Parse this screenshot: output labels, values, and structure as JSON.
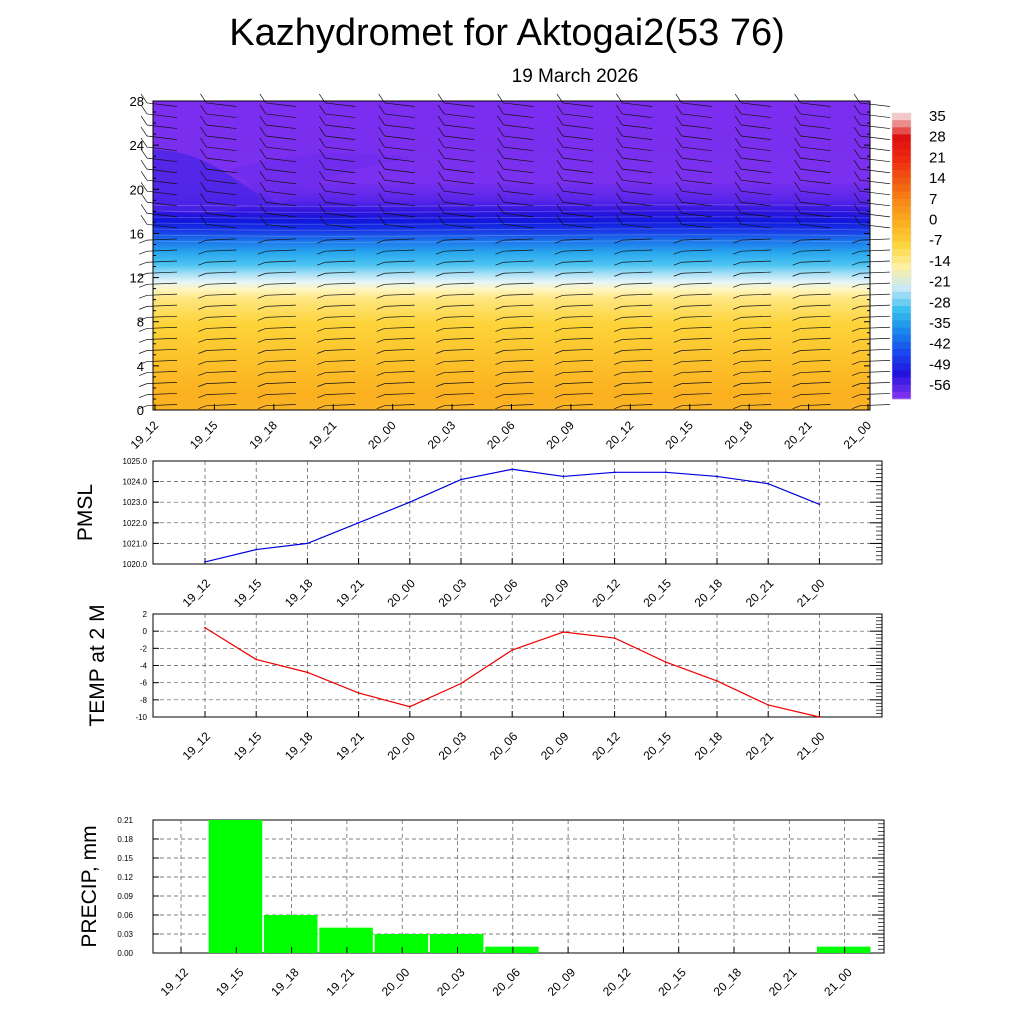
{
  "title": "Kazhydromet for Aktogai2(53 76)",
  "date": "19 March 2026",
  "x_labels": [
    "19_12",
    "19_15",
    "19_18",
    "19_21",
    "20_00",
    "20_03",
    "20_06",
    "20_09",
    "20_12",
    "20_15",
    "20_18",
    "20_21",
    "21_00"
  ],
  "colors": {
    "pmsl_line": "#0000dd",
    "temp_line": "#ee0000",
    "precip_bar": "#00ff00",
    "grid": "#555555"
  },
  "chart_data": [
    {
      "type": "heatmap",
      "name": "temperature-wind cross-section",
      "ylabel": "",
      "ylim": [
        0,
        28
      ],
      "yticks": [
        0,
        4,
        8,
        12,
        16,
        20,
        24,
        28
      ],
      "categories": [
        "19_12",
        "19_15",
        "19_18",
        "19_21",
        "20_00",
        "20_03",
        "20_06",
        "20_09",
        "20_12",
        "20_15",
        "20_18",
        "20_21",
        "21_00"
      ],
      "colorbar_labels": [
        "35",
        "28",
        "21",
        "14",
        "7",
        "0",
        "-7",
        "-14",
        "-21",
        "-28",
        "-35",
        "-42",
        "-49",
        "-56"
      ],
      "colorbar_colors": [
        "#f4c8c8",
        "#dd1010",
        "#ee2a10",
        "#f15a12",
        "#f78a18",
        "#fbb020",
        "#fcd640",
        "#fdf0a0",
        "#c8e8f6",
        "#3cc0f0",
        "#1a88ea",
        "#1848ee",
        "#2214dd",
        "#7a30ee"
      ],
      "wind_barbs": true
    },
    {
      "type": "line",
      "name": "PMSL",
      "ylabel": "PMSL",
      "ylim": [
        1020.0,
        1025.0
      ],
      "yticks": [
        "1020.0",
        "1021.0",
        "1022.0",
        "1023.0",
        "1024.0",
        "1025.0"
      ],
      "categories": [
        "19_12",
        "19_15",
        "19_18",
        "19_21",
        "20_00",
        "20_03",
        "20_06",
        "20_09",
        "20_12",
        "20_15",
        "20_18",
        "20_21",
        "21_00"
      ],
      "values": [
        1020.1,
        1020.7,
        1021.0,
        1022.0,
        1023.0,
        1024.1,
        1024.6,
        1024.25,
        1024.45,
        1024.45,
        1024.25,
        1023.9,
        1022.9
      ]
    },
    {
      "type": "line",
      "name": "TEMP at 2 M",
      "ylabel": "TEMP at 2 M",
      "ylim": [
        -10,
        2
      ],
      "yticks": [
        "-10",
        "-8",
        "-6",
        "-4",
        "-2",
        "0",
        "2"
      ],
      "categories": [
        "19_12",
        "19_15",
        "19_18",
        "19_21",
        "20_00",
        "20_03",
        "20_06",
        "20_09",
        "20_12",
        "20_15",
        "20_18",
        "20_21",
        "21_00"
      ],
      "values": [
        0.4,
        -3.3,
        -4.8,
        -7.2,
        -8.8,
        -6.1,
        -2.2,
        -0.1,
        -0.8,
        -3.6,
        -5.8,
        -8.6,
        -10.0
      ]
    },
    {
      "type": "bar",
      "name": "PRECIP, mm",
      "ylabel": "PRECIP, mm",
      "ylim": [
        0,
        0.21
      ],
      "yticks": [
        "0.00",
        "0.03",
        "0.06",
        "0.09",
        "0.12",
        "0.15",
        "0.18",
        "0.21"
      ],
      "categories": [
        "19_12",
        "19_15",
        "19_18",
        "19_21",
        "20_00",
        "20_03",
        "20_06",
        "20_09",
        "20_12",
        "20_15",
        "20_18",
        "20_21",
        "21_00"
      ],
      "values": [
        0,
        0.21,
        0.06,
        0.04,
        0.03,
        0.03,
        0.01,
        0,
        0,
        0,
        0,
        0,
        0.01
      ]
    }
  ]
}
